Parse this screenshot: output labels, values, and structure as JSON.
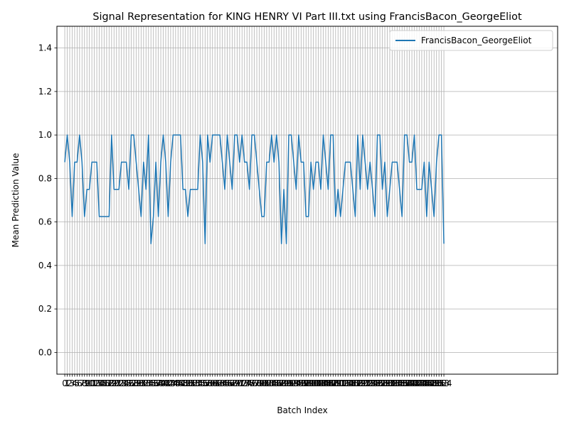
{
  "chart_data": {
    "type": "line",
    "title": "Signal Representation for KING HENRY VI Part III.txt using FrancisBacon_GeorgeEliot",
    "xlabel": "Batch Index",
    "ylabel": "Mean Prediction Value",
    "xlim": [
      -3.2,
      200.2
    ],
    "ylim": [
      -0.1,
      1.5
    ],
    "yticks": [
      "0.0",
      "0.2",
      "0.4",
      "0.6",
      "0.8",
      "1.0",
      "1.2",
      "1.4"
    ],
    "grid": true,
    "legend_position": "top-right",
    "colors": {
      "series": "#1f77b4",
      "grid": "#b0b0b0"
    },
    "series": [
      {
        "name": "FrancisBacon_GeorgeEliot",
        "values": [
          0.875,
          1.0,
          0.875,
          0.625,
          0.875,
          0.875,
          1.0,
          0.875,
          0.625,
          0.75,
          0.75,
          0.875,
          0.875,
          0.875,
          0.625,
          0.625,
          0.625,
          0.625,
          0.625,
          1.0,
          0.75,
          0.75,
          0.75,
          0.875,
          0.875,
          0.875,
          0.75,
          1.0,
          1.0,
          0.875,
          0.75,
          0.625,
          0.875,
          0.75,
          1.0,
          0.5,
          0.625,
          0.875,
          0.625,
          0.875,
          1.0,
          0.875,
          0.625,
          0.875,
          1.0,
          1.0,
          1.0,
          1.0,
          0.75,
          0.75,
          0.625,
          0.75,
          0.75,
          0.75,
          0.75,
          1.0,
          0.875,
          0.5,
          1.0,
          0.875,
          1.0,
          1.0,
          1.0,
          1.0,
          0.875,
          0.75,
          1.0,
          0.875,
          0.75,
          1.0,
          1.0,
          0.875,
          1.0,
          0.875,
          0.875,
          0.75,
          1.0,
          1.0,
          0.875,
          0.75,
          0.625,
          0.625,
          0.875,
          0.875,
          1.0,
          0.875,
          1.0,
          0.875,
          0.5,
          0.75,
          0.5,
          1.0,
          1.0,
          0.875,
          0.75,
          1.0,
          0.875,
          0.875,
          0.625,
          0.625,
          0.875,
          0.75,
          0.875,
          0.875,
          0.75,
          1.0,
          0.875,
          0.75,
          1.0,
          1.0,
          0.625,
          0.75,
          0.625,
          0.75,
          0.875,
          0.875,
          0.875,
          0.75,
          0.625,
          1.0,
          0.75,
          1.0,
          0.875,
          0.75,
          0.875,
          0.75,
          0.625,
          1.0,
          1.0,
          0.75,
          0.875,
          0.625,
          0.75,
          0.875,
          0.875,
          0.875,
          0.75,
          0.625,
          1.0,
          1.0,
          0.875,
          0.875,
          1.0,
          0.75,
          0.75,
          0.75,
          0.875,
          0.625,
          0.875,
          0.75,
          0.625,
          0.875,
          1.0,
          1.0,
          0.5
        ]
      }
    ]
  }
}
